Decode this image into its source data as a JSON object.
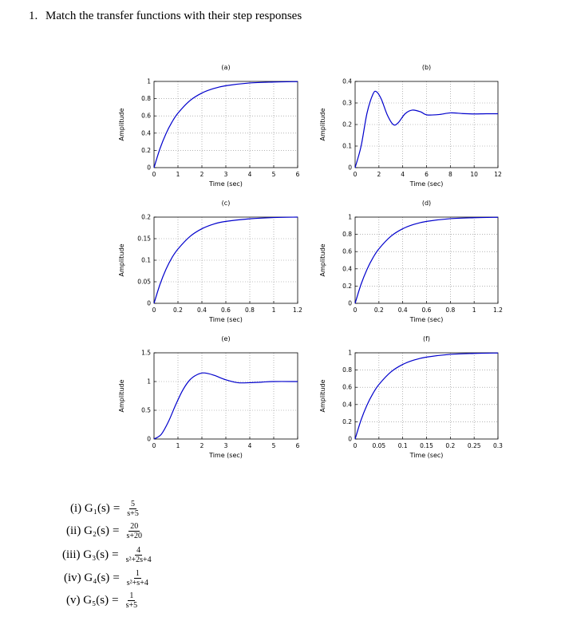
{
  "question": {
    "number": "1.",
    "text": "Match the transfer functions with their step responses"
  },
  "colors": {
    "curve": "#0000cc",
    "frame": "#000000",
    "grid": "#888888"
  },
  "chart_data": [
    {
      "type": "line",
      "title": "(a)",
      "xlabel": "Time (sec)",
      "ylabel": "Amplitude",
      "xlim": [
        0,
        6
      ],
      "ylim": [
        0,
        1
      ],
      "xticks": [
        0,
        1,
        2,
        3,
        4,
        5,
        6
      ],
      "xtick_labels": [
        "0",
        "1",
        "2",
        "3",
        "4",
        "5",
        "6"
      ],
      "yticks": [
        0,
        0.2,
        0.4,
        0.6,
        0.8,
        1
      ],
      "ytick_labels": [
        "0",
        "0.2",
        "0.4",
        "0.6",
        "0.8",
        "1"
      ],
      "series": [
        {
          "x": [
            0,
            0.25,
            0.5,
            0.75,
            1,
            1.5,
            2,
            2.5,
            3,
            4,
            5,
            6
          ],
          "y": [
            0,
            0.221,
            0.394,
            0.528,
            0.632,
            0.777,
            0.865,
            0.918,
            0.95,
            0.982,
            0.993,
            0.998
          ]
        }
      ]
    },
    {
      "type": "line",
      "title": "(b)",
      "xlabel": "Time (sec)",
      "ylabel": "Amplitude",
      "xlim": [
        0,
        12
      ],
      "ylim": [
        0,
        0.4
      ],
      "xticks": [
        0,
        2,
        4,
        6,
        8,
        10,
        12
      ],
      "xtick_labels": [
        "0",
        "2",
        "4",
        "6",
        "8",
        "10",
        "12"
      ],
      "yticks": [
        0,
        0.1,
        0.2,
        0.3,
        0.4
      ],
      "ytick_labels": [
        "0",
        "0.1",
        "0.2",
        "0.3",
        "0.4"
      ],
      "series": [
        {
          "x": [
            0,
            0.5,
            1,
            1.5,
            1.8,
            2.2,
            2.7,
            3.2,
            3.6,
            4.2,
            4.8,
            5.5,
            6,
            7,
            8,
            9,
            10,
            11,
            12
          ],
          "y": [
            0,
            0.099,
            0.253,
            0.341,
            0.352,
            0.318,
            0.245,
            0.2,
            0.207,
            0.25,
            0.267,
            0.259,
            0.245,
            0.246,
            0.254,
            0.251,
            0.249,
            0.25,
            0.25
          ]
        }
      ]
    },
    {
      "type": "line",
      "title": "(c)",
      "xlabel": "Time (sec)",
      "ylabel": "Amplitude",
      "xlim": [
        0,
        1.2
      ],
      "ylim": [
        0,
        0.2
      ],
      "xticks": [
        0,
        0.2,
        0.4,
        0.6,
        0.8,
        1,
        1.2
      ],
      "xtick_labels": [
        "0",
        "0.2",
        "0.4",
        "0.6",
        "0.8",
        "1",
        "1.2"
      ],
      "yticks": [
        0,
        0.05,
        0.1,
        0.15,
        0.2
      ],
      "ytick_labels": [
        "0",
        "0.05",
        "0.1",
        "0.15",
        "0.2"
      ],
      "series": [
        {
          "x": [
            0,
            0.05,
            0.1,
            0.15,
            0.2,
            0.3,
            0.4,
            0.5,
            0.6,
            0.8,
            1,
            1.2
          ],
          "y": [
            0,
            0.044,
            0.079,
            0.106,
            0.126,
            0.155,
            0.173,
            0.184,
            0.19,
            0.196,
            0.199,
            0.2
          ]
        }
      ]
    },
    {
      "type": "line",
      "title": "(d)",
      "xlabel": "Time (sec)",
      "ylabel": "Amplitude",
      "xlim": [
        0,
        1.2
      ],
      "ylim": [
        0,
        1
      ],
      "xticks": [
        0,
        0.2,
        0.4,
        0.6,
        0.8,
        1,
        1.2
      ],
      "xtick_labels": [
        "0",
        "0.2",
        "0.4",
        "0.6",
        "0.8",
        "1",
        "1.2"
      ],
      "yticks": [
        0,
        0.2,
        0.4,
        0.6,
        0.8,
        1
      ],
      "ytick_labels": [
        "0",
        "0.2",
        "0.4",
        "0.6",
        "0.8",
        "1"
      ],
      "series": [
        {
          "x": [
            0,
            0.05,
            0.1,
            0.15,
            0.2,
            0.3,
            0.4,
            0.5,
            0.6,
            0.8,
            1,
            1.2
          ],
          "y": [
            0,
            0.221,
            0.394,
            0.528,
            0.632,
            0.777,
            0.865,
            0.918,
            0.95,
            0.982,
            0.993,
            0.998
          ]
        }
      ]
    },
    {
      "type": "line",
      "title": "(e)",
      "xlabel": "Time (sec)",
      "ylabel": "Amplitude",
      "xlim": [
        0,
        6
      ],
      "ylim": [
        0,
        1.5
      ],
      "xticks": [
        0,
        1,
        2,
        3,
        4,
        5,
        6
      ],
      "xtick_labels": [
        "0",
        "1",
        "2",
        "3",
        "4",
        "5",
        "6"
      ],
      "yticks": [
        0,
        0.5,
        1,
        1.5
      ],
      "ytick_labels": [
        "0",
        "0.5",
        "1",
        "1.5"
      ],
      "series": [
        {
          "x": [
            0,
            0.3,
            0.6,
            0.9,
            1.2,
            1.5,
            1.8,
            2.1,
            2.5,
            3,
            3.5,
            4,
            4.5,
            5,
            6
          ],
          "y": [
            0,
            0.08,
            0.3,
            0.59,
            0.85,
            1.03,
            1.12,
            1.15,
            1.11,
            1.03,
            0.98,
            0.98,
            0.99,
            1.0,
            1.0
          ]
        }
      ]
    },
    {
      "type": "line",
      "title": "(f)",
      "xlabel": "Time (sec)",
      "ylabel": "Amplitude",
      "xlim": [
        0,
        0.3
      ],
      "ylim": [
        0,
        1
      ],
      "xticks": [
        0,
        0.05,
        0.1,
        0.15,
        0.2,
        0.25,
        0.3
      ],
      "xtick_labels": [
        "0",
        "0.05",
        "0.1",
        "0.15",
        "0.2",
        "0.25",
        "0.3"
      ],
      "yticks": [
        0,
        0.2,
        0.4,
        0.6,
        0.8,
        1
      ],
      "ytick_labels": [
        "0",
        "0.2",
        "0.4",
        "0.6",
        "0.8",
        "1"
      ],
      "series": [
        {
          "x": [
            0,
            0.0125,
            0.025,
            0.0375,
            0.05,
            0.075,
            0.1,
            0.125,
            0.15,
            0.2,
            0.25,
            0.3
          ],
          "y": [
            0,
            0.221,
            0.394,
            0.528,
            0.632,
            0.777,
            0.865,
            0.918,
            0.95,
            0.982,
            0.993,
            0.998
          ]
        }
      ]
    }
  ],
  "transfer_functions": [
    {
      "label": "(i) G₁(s)",
      "equals": "=",
      "num": "5",
      "den": "s+5"
    },
    {
      "label": "(ii) G₂(s)",
      "equals": "=",
      "num": "20",
      "den": "s+20"
    },
    {
      "label": "(iii) G₃(s)",
      "equals": "=",
      "num": "4",
      "den": "s²+2s+4"
    },
    {
      "label": "(iv) G₄(s)",
      "equals": "=",
      "num": "1",
      "den": "s²+s+4"
    },
    {
      "label": "(v) G₅(s)",
      "equals": "=",
      "num": "1",
      "den": "s+5"
    }
  ]
}
